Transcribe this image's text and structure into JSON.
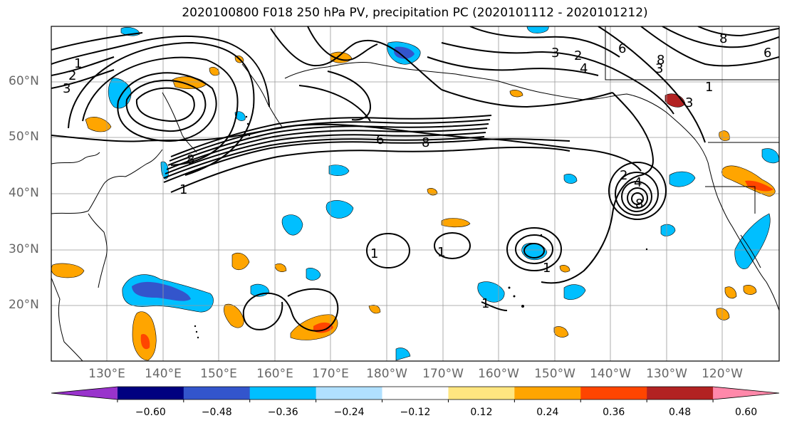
{
  "title": "2020100800 F018 250 hPa PV, precipitation PC (2020101112 - 2020101212)",
  "lat_labels": [
    "60°N",
    "50°N",
    "40°N",
    "30°N",
    "20°N"
  ],
  "lon_labels": [
    "130°E",
    "140°E",
    "150°E",
    "160°E",
    "170°E",
    "180°W",
    "170°W",
    "160°W",
    "150°W",
    "140°W",
    "130°W",
    "120°W"
  ],
  "colorbar": {
    "tick_labels": [
      "-0.60",
      "-0.48",
      "-0.36",
      "-0.24",
      "-0.12",
      "0.12",
      "0.24",
      "0.36",
      "0.48",
      "0.60"
    ],
    "colors": [
      "#9933cc",
      "#000080",
      "#3355cc",
      "#00bfff",
      "#b0e0ff",
      "#ffffff",
      "#ffe680",
      "#ffa500",
      "#ff4500",
      "#b22222",
      "#ff88aa"
    ]
  },
  "contour_labels": [
    "1",
    "2",
    "3",
    "4",
    "6",
    "8"
  ]
}
